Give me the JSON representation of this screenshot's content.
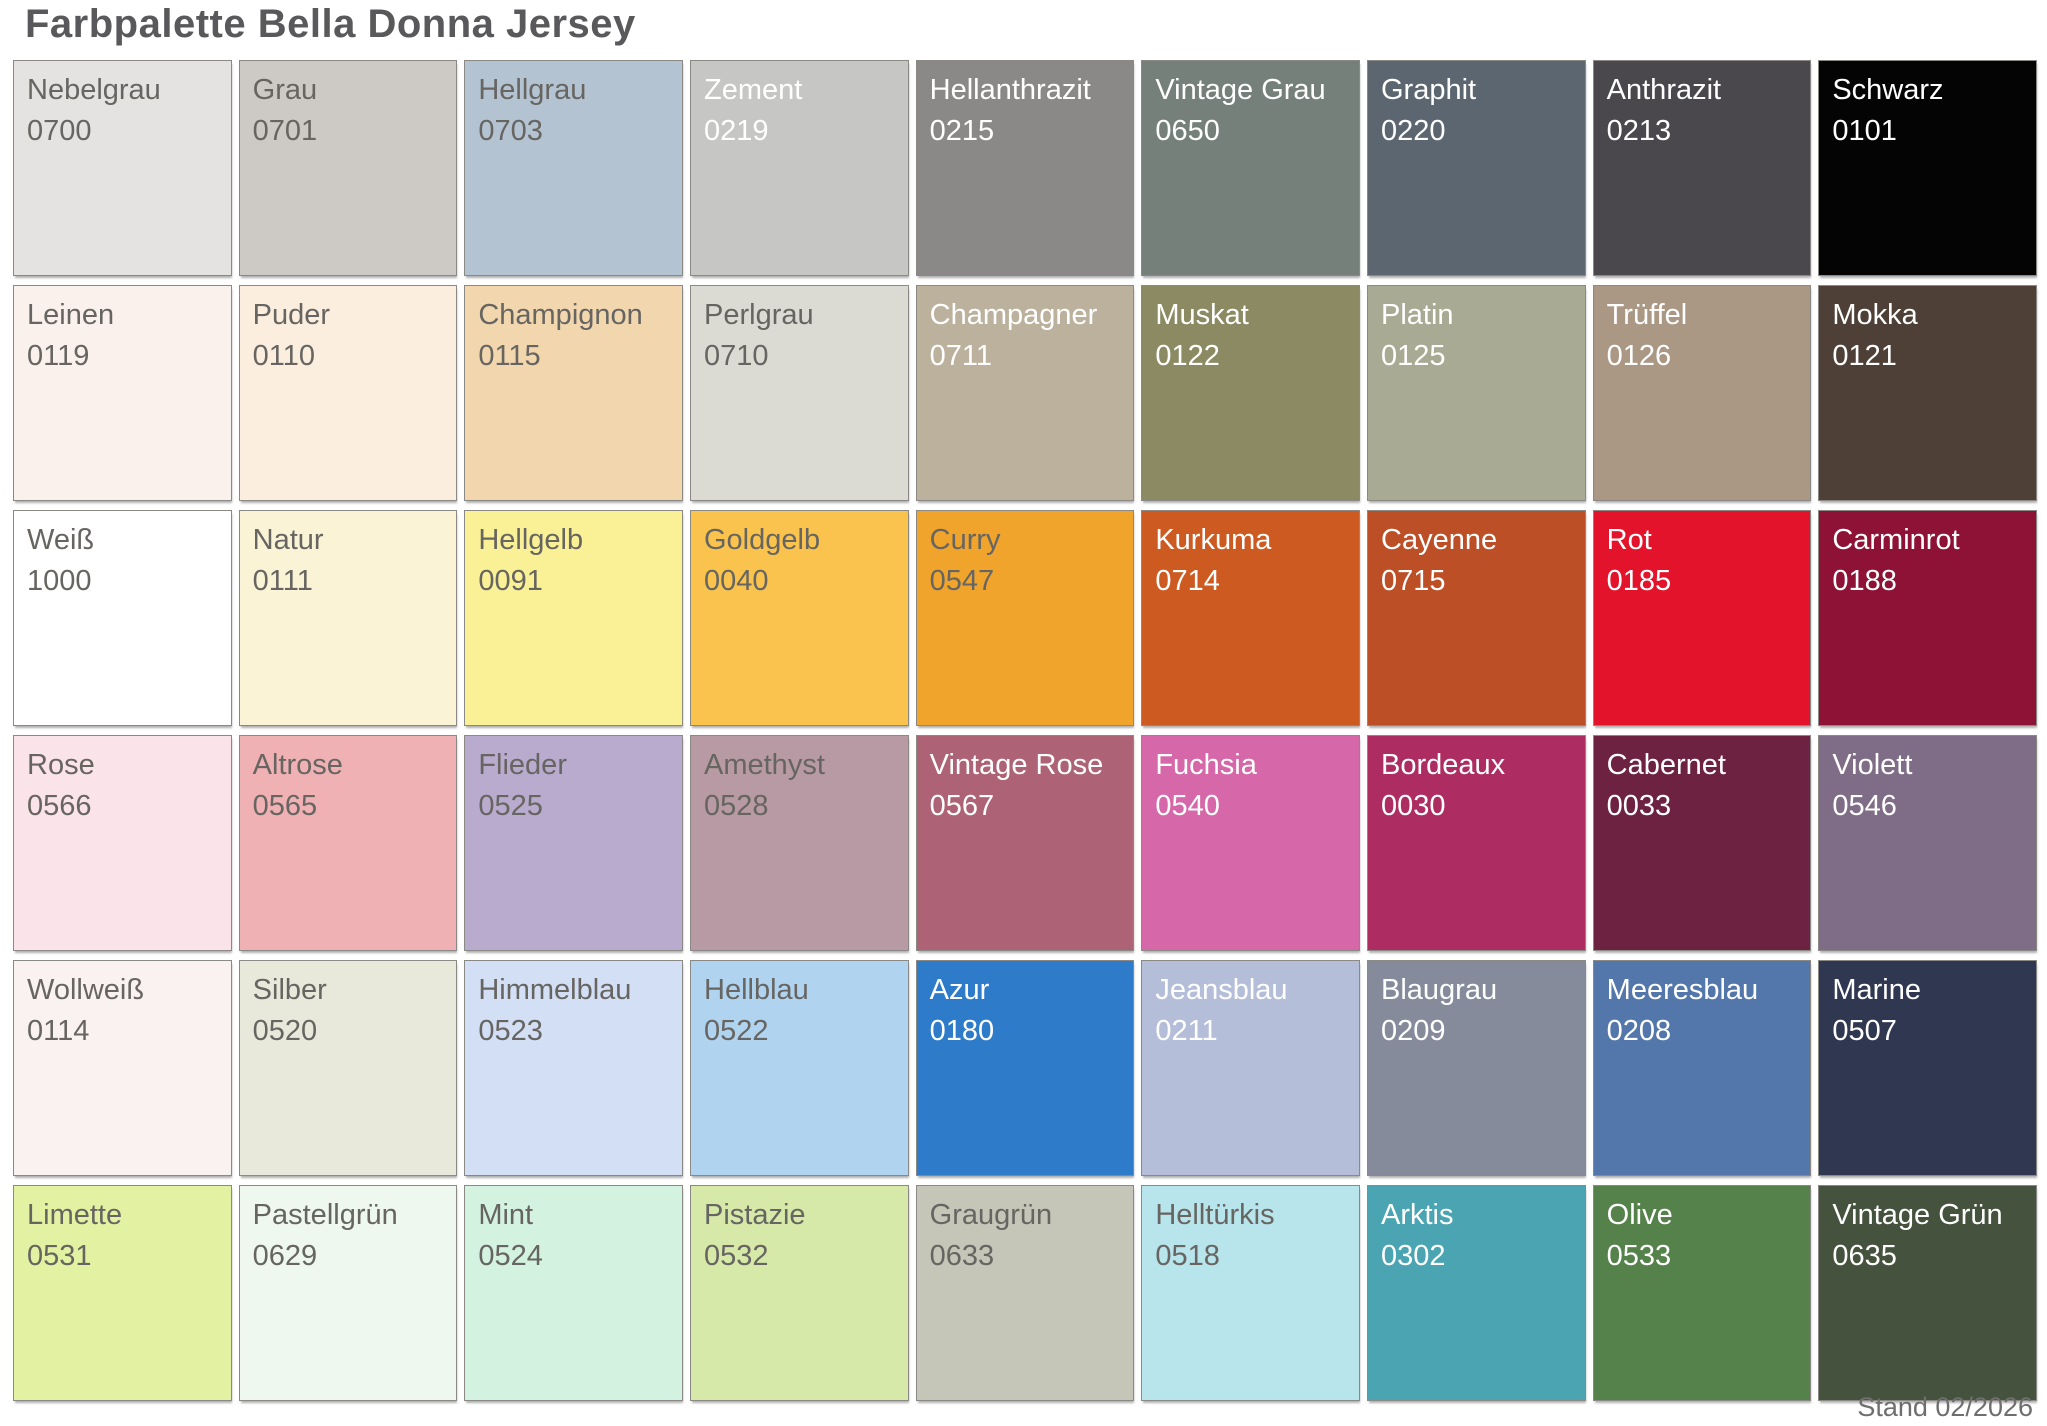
{
  "title": "Farbpalette Bella Donna Jersey",
  "footer": "Stand 02/2026",
  "colors": {
    "title_text": "#59595b",
    "footer_text": "#6e6e6e",
    "swatch_border": "#8b8985",
    "label_dark": "#676561",
    "label_light": "#ffffff"
  },
  "palette": {
    "columns": 9,
    "rows": 6,
    "cells": [
      {
        "name": "Nebelgrau",
        "code": "0700",
        "hex": "#e5e3e1",
        "label": "dark"
      },
      {
        "name": "Grau",
        "code": "0701",
        "hex": "#cdc9c5",
        "label": "dark"
      },
      {
        "name": "Hellgrau",
        "code": "0703",
        "hex": "#b4c3d1",
        "label": "dark"
      },
      {
        "name": "Zement",
        "code": "0219",
        "hex": "#c6c6c4",
        "label": "light"
      },
      {
        "name": "Hellanthrazit",
        "code": "0215",
        "hex": "#8b8987",
        "label": "light"
      },
      {
        "name": "Vintage Grau",
        "code": "0650",
        "hex": "#75807b",
        "label": "light"
      },
      {
        "name": "Graphit",
        "code": "0220",
        "hex": "#5b6670",
        "label": "light"
      },
      {
        "name": "Anthrazit",
        "code": "0213",
        "hex": "#4a474d",
        "label": "light"
      },
      {
        "name": "Schwarz",
        "code": "0101",
        "hex": "#040404",
        "label": "light"
      },
      {
        "name": "Leinen",
        "code": "0119",
        "hex": "#faf1ec",
        "label": "dark"
      },
      {
        "name": "Puder",
        "code": "0110",
        "hex": "#fbeede",
        "label": "dark"
      },
      {
        "name": "Champignon",
        "code": "0115",
        "hex": "#f2d6ad",
        "label": "dark"
      },
      {
        "name": "Perlgrau",
        "code": "0710",
        "hex": "#dcdbd3",
        "label": "dark"
      },
      {
        "name": "Champagner",
        "code": "0711",
        "hex": "#bcb19d",
        "label": "light"
      },
      {
        "name": "Muskat",
        "code": "0122",
        "hex": "#8b8a63",
        "label": "light"
      },
      {
        "name": "Platin",
        "code": "0125",
        "hex": "#a9aa93",
        "label": "light"
      },
      {
        "name": "Trüffel",
        "code": "0126",
        "hex": "#ab9884",
        "label": "light"
      },
      {
        "name": "Mokka",
        "code": "0121",
        "hex": "#4e4036",
        "label": "light"
      },
      {
        "name": "Weiß",
        "code": "1000",
        "hex": "#ffffff",
        "label": "dark"
      },
      {
        "name": "Natur",
        "code": "0111",
        "hex": "#fbf3d5",
        "label": "dark"
      },
      {
        "name": "Hellgelb",
        "code": "0091",
        "hex": "#faf096",
        "label": "dark"
      },
      {
        "name": "Goldgelb",
        "code": "0040",
        "hex": "#f9c34e",
        "label": "dark"
      },
      {
        "name": "Curry",
        "code": "0547",
        "hex": "#f0a42c",
        "label": "dark"
      },
      {
        "name": "Kurkuma",
        "code": "0714",
        "hex": "#cd5a20",
        "label": "light"
      },
      {
        "name": "Cayenne",
        "code": "0715",
        "hex": "#bd4f27",
        "label": "light"
      },
      {
        "name": "Rot",
        "code": "0185",
        "hex": "#e3132b",
        "label": "light"
      },
      {
        "name": "Carminrot",
        "code": "0188",
        "hex": "#8e1236",
        "label": "light"
      },
      {
        "name": "Rose",
        "code": "0566",
        "hex": "#fbe3ea",
        "label": "dark"
      },
      {
        "name": "Altrose",
        "code": "0565",
        "hex": "#f0b1b4",
        "label": "dark"
      },
      {
        "name": "Flieder",
        "code": "0525",
        "hex": "#b8abce",
        "label": "dark"
      },
      {
        "name": "Amethyst",
        "code": "0528",
        "hex": "#b79aa3",
        "label": "dark"
      },
      {
        "name": "Vintage Rose",
        "code": "0567",
        "hex": "#ad6375",
        "label": "light"
      },
      {
        "name": "Fuchsia",
        "code": "0540",
        "hex": "#d667a9",
        "label": "light"
      },
      {
        "name": "Bordeaux",
        "code": "0030",
        "hex": "#ad2d62",
        "label": "light"
      },
      {
        "name": "Cabernet",
        "code": "0033",
        "hex": "#6d2242",
        "label": "light"
      },
      {
        "name": "Violett",
        "code": "0546",
        "hex": "#7f6c86",
        "label": "light"
      },
      {
        "name": "Wollweiß",
        "code": "0114",
        "hex": "#faf2f1",
        "label": "dark"
      },
      {
        "name": "Silber",
        "code": "0520",
        "hex": "#e9e9db",
        "label": "dark"
      },
      {
        "name": "Himmelblau",
        "code": "0523",
        "hex": "#d3dff4",
        "label": "dark"
      },
      {
        "name": "Hellblau",
        "code": "0522",
        "hex": "#b0d4f0",
        "label": "dark"
      },
      {
        "name": "Azur",
        "code": "0180",
        "hex": "#2e7bc9",
        "label": "light"
      },
      {
        "name": "Jeansblau",
        "code": "0211",
        "hex": "#b5bed8",
        "label": "light"
      },
      {
        "name": "Blaugrau",
        "code": "0209",
        "hex": "#858b9b",
        "label": "light"
      },
      {
        "name": "Meeresblau",
        "code": "0208",
        "hex": "#5477ab",
        "label": "light"
      },
      {
        "name": "Marine",
        "code": "0507",
        "hex": "#2f3751",
        "label": "light"
      },
      {
        "name": "Limette",
        "code": "0531",
        "hex": "#e3f2a2",
        "label": "dark"
      },
      {
        "name": "Pastellgrün",
        "code": "0629",
        "hex": "#eef8ee",
        "label": "dark"
      },
      {
        "name": "Mint",
        "code": "0524",
        "hex": "#d3f2df",
        "label": "dark"
      },
      {
        "name": "Pistazie",
        "code": "0532",
        "hex": "#d6e9a9",
        "label": "dark"
      },
      {
        "name": "Graugrün",
        "code": "0633",
        "hex": "#c5c6b8",
        "label": "dark"
      },
      {
        "name": "Helltürkis",
        "code": "0518",
        "hex": "#b8e4ec",
        "label": "dark"
      },
      {
        "name": "Arktis",
        "code": "0302",
        "hex": "#4aa4b2",
        "label": "light"
      },
      {
        "name": "Olive",
        "code": "0533",
        "hex": "#55814b",
        "label": "light"
      },
      {
        "name": "Vintage Grün",
        "code": "0635",
        "hex": "#45523d",
        "label": "light"
      }
    ]
  }
}
